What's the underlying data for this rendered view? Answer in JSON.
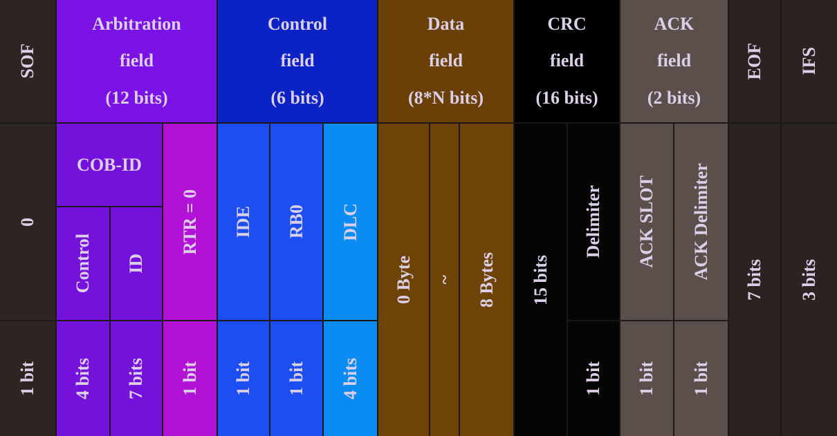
{
  "sof": {
    "title": "SOF",
    "value": "0",
    "bits": "1 bit"
  },
  "arbitration": {
    "title": [
      "Arbitration",
      "field",
      "(12 bits)"
    ],
    "group": "COB-ID",
    "parts": [
      {
        "label": "Control",
        "bits": "4 bits"
      },
      {
        "label": "ID",
        "bits": "7 bits"
      },
      {
        "label": "RTR = 0",
        "bits": "1 bit"
      }
    ]
  },
  "control": {
    "title": [
      "Control",
      "field",
      "(6 bits)"
    ],
    "parts": [
      {
        "label": "IDE",
        "bits": "1 bit"
      },
      {
        "label": "RB0",
        "bits": "1 bit"
      },
      {
        "label": "DLC",
        "bits": "4 bits"
      }
    ]
  },
  "data": {
    "title": [
      "Data",
      "field",
      "(8*N bits)"
    ],
    "parts": [
      "0 Byte",
      "~",
      "8 Bytes"
    ]
  },
  "crc": {
    "title": [
      "CRC",
      "field",
      "(16 bits)"
    ],
    "sequence": "15 bits",
    "delimiter": {
      "label": "Delimiter",
      "bits": "1 bit"
    }
  },
  "ack": {
    "title": [
      "ACK",
      "field",
      "(2 bits)"
    ],
    "parts": [
      {
        "label": "ACK SLOT",
        "bits": "1 bit"
      },
      {
        "label": "ACK Delimiter",
        "bits": "1 bit"
      }
    ]
  },
  "eof": {
    "title": "EOF",
    "bits": "7 bits"
  },
  "ifs": {
    "title": "IFS",
    "bits": "3 bits"
  }
}
